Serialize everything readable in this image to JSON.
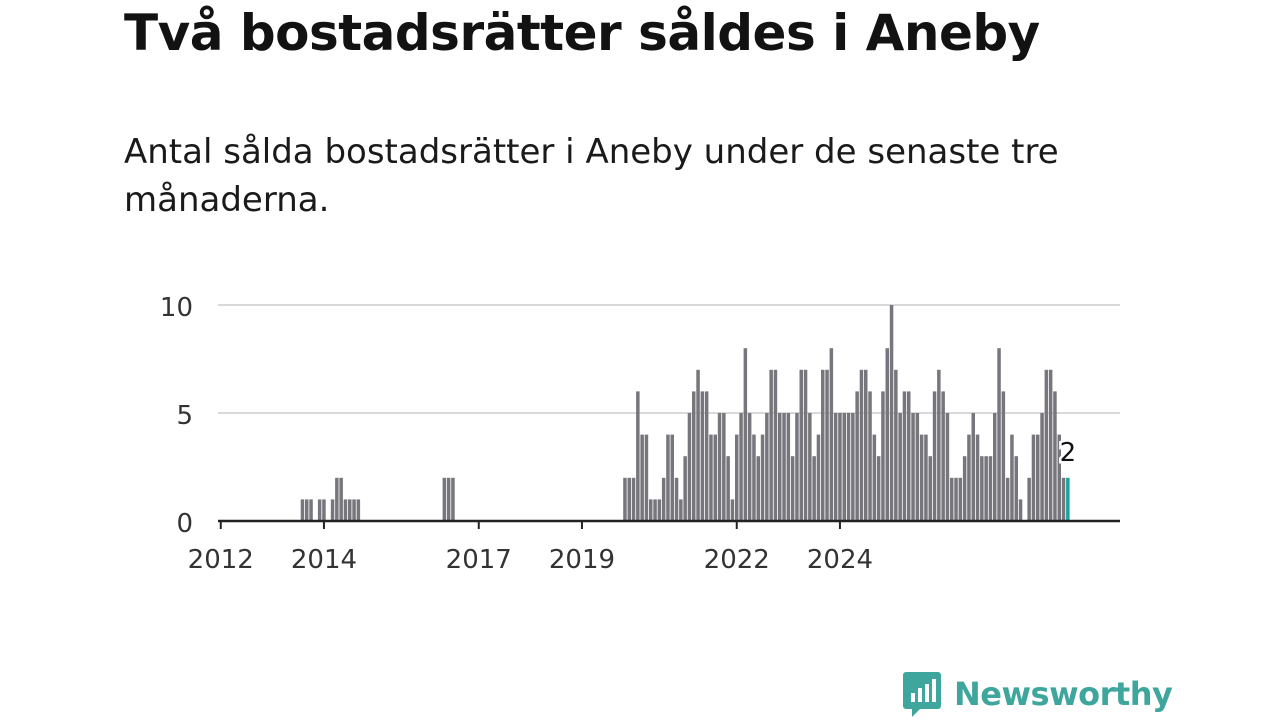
{
  "header": {
    "title": "Två bostadsrätter såldes i Aneby",
    "subtitle": "Antal sålda bostadsrätter i Aneby under de senaste tre månaderna."
  },
  "brand": {
    "name": "Newsworthy",
    "color": "#3fa69d",
    "icon": "newsworthy-logo-icon"
  },
  "colors": {
    "bar": "#77767c",
    "highlight": "#1aa3a0",
    "grid": "#d9d9d9",
    "axis": "#222222"
  },
  "chart_data": {
    "type": "bar",
    "title": "",
    "xlabel": "",
    "ylabel": "",
    "ylim": [
      0,
      10
    ],
    "yticks": [
      "0",
      "5",
      "10"
    ],
    "xtick_labels": [
      "2012",
      "2014",
      "2017",
      "2019",
      "2022",
      "2024"
    ],
    "grid": true,
    "start_month": "2012-01",
    "values": [
      0,
      0,
      0,
      0,
      0,
      0,
      0,
      0,
      0,
      0,
      0,
      0,
      0,
      0,
      0,
      0,
      0,
      0,
      0,
      1,
      1,
      1,
      0,
      1,
      1,
      0,
      1,
      2,
      2,
      1,
      1,
      1,
      1,
      0,
      0,
      0,
      0,
      0,
      0,
      0,
      0,
      0,
      0,
      0,
      0,
      0,
      0,
      0,
      0,
      0,
      0,
      0,
      2,
      2,
      2,
      0,
      0,
      0,
      0,
      0,
      0,
      0,
      0,
      0,
      0,
      0,
      0,
      0,
      0,
      0,
      0,
      0,
      0,
      0,
      0,
      0,
      0,
      0,
      0,
      0,
      0,
      0,
      0,
      0,
      0,
      0,
      0,
      0,
      0,
      0,
      0,
      0,
      0,
      0,
      2,
      2,
      2,
      6,
      4,
      4,
      1,
      1,
      1,
      2,
      4,
      4,
      2,
      1,
      3,
      5,
      6,
      7,
      6,
      6,
      4,
      4,
      5,
      5,
      3,
      1,
      4,
      5,
      8,
      5,
      4,
      3,
      4,
      5,
      7,
      7,
      5,
      5,
      5,
      3,
      5,
      7,
      7,
      5,
      3,
      4,
      7,
      7,
      8,
      5,
      5,
      5,
      5,
      5,
      6,
      7,
      7,
      6,
      4,
      3,
      6,
      8,
      10,
      7,
      5,
      6,
      6,
      5,
      5,
      4,
      4,
      3,
      6,
      7,
      6,
      5,
      2,
      2,
      2,
      3,
      4,
      5,
      4,
      3,
      3,
      3,
      5,
      8,
      6,
      2,
      4,
      3,
      1,
      0,
      2,
      4,
      4,
      5,
      7,
      7,
      6,
      4,
      2,
      2
    ],
    "highlight_label": "2"
  }
}
